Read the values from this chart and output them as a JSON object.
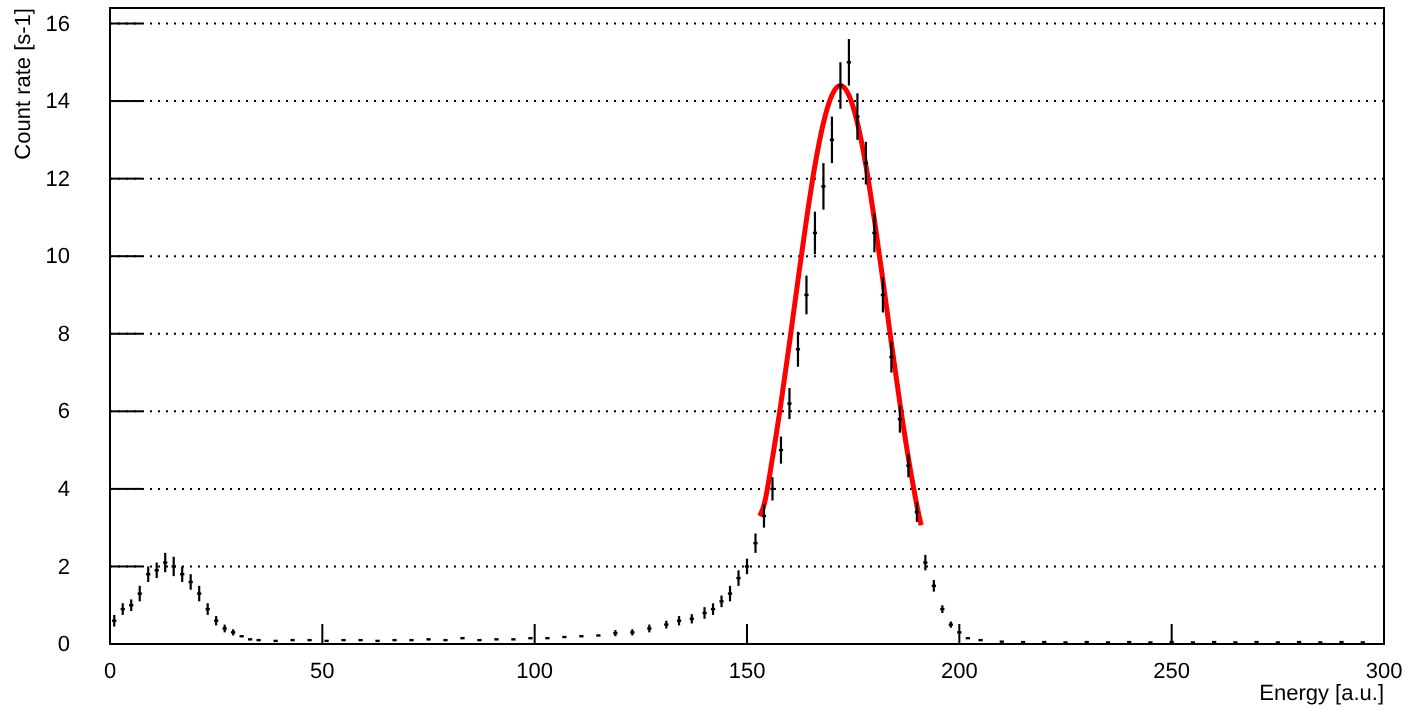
{
  "chart_data": {
    "type": "scatter",
    "xlabel": "Energy [a.u.]",
    "ylabel": "Count rate [s-1]",
    "xlim": [
      0,
      300
    ],
    "xticks": [
      0,
      50,
      100,
      150,
      200,
      250,
      300
    ],
    "ylim": [
      0,
      16.4
    ],
    "yticks": [
      0,
      2,
      4,
      6,
      8,
      10,
      12,
      14,
      16
    ],
    "grid": "y",
    "series": [
      {
        "type": "line",
        "color": "#ff0000",
        "x": [
          153,
          154,
          156,
          158,
          160,
          162,
          164,
          166,
          168,
          170,
          172,
          174,
          176,
          178,
          180,
          182,
          184,
          186,
          188,
          190,
          191
        ],
        "values": [
          3.3,
          3.58,
          4.8,
          6.21,
          7.76,
          9.38,
          10.94,
          12.34,
          13.44,
          14.15,
          14.4,
          14.15,
          13.44,
          12.34,
          10.94,
          9.38,
          7.76,
          6.21,
          4.8,
          3.58,
          3.06
        ]
      },
      {
        "color": "#000000",
        "x": [
          1,
          3,
          5,
          7,
          9,
          11,
          13,
          15,
          17,
          19,
          21,
          23,
          25,
          27,
          29,
          31,
          33,
          35,
          39,
          43,
          47,
          51,
          55,
          59,
          63,
          67,
          71,
          75,
          79,
          83,
          87,
          91,
          95,
          99,
          103,
          107,
          111,
          115,
          119,
          123,
          127,
          131,
          134,
          137,
          140,
          142,
          144,
          146,
          148,
          150,
          152,
          154,
          156,
          158,
          160,
          162,
          164,
          166,
          168,
          170,
          172,
          174,
          176,
          178,
          180,
          182,
          184,
          186,
          188,
          190,
          192,
          194,
          196,
          198,
          200,
          202,
          205,
          210,
          215,
          220,
          225,
          230,
          235,
          240,
          245,
          250,
          255,
          260,
          265,
          270,
          275,
          280,
          285,
          290,
          295
        ],
        "values": [
          0.6,
          0.9,
          1.0,
          1.3,
          1.8,
          1.9,
          2.1,
          2.0,
          1.8,
          1.6,
          1.3,
          0.9,
          0.6,
          0.4,
          0.3,
          0.2,
          0.12,
          0.1,
          0.08,
          0.1,
          0.1,
          0.08,
          0.1,
          0.1,
          0.08,
          0.1,
          0.1,
          0.12,
          0.1,
          0.15,
          0.1,
          0.12,
          0.12,
          0.15,
          0.15,
          0.18,
          0.2,
          0.22,
          0.28,
          0.3,
          0.4,
          0.5,
          0.6,
          0.65,
          0.8,
          0.9,
          1.1,
          1.3,
          1.7,
          2.0,
          2.6,
          3.3,
          4.0,
          5.0,
          6.2,
          7.6,
          9.0,
          10.6,
          11.8,
          13.0,
          14.4,
          15.0,
          13.6,
          12.4,
          10.6,
          9.0,
          7.4,
          5.8,
          4.6,
          3.4,
          2.1,
          1.5,
          0.9,
          0.5,
          0.3,
          0.15,
          0.1,
          0.06,
          0.05,
          0.05,
          0.04,
          0.05,
          0.04,
          0.05,
          0.04,
          0.05,
          0.04,
          0.05,
          0.04,
          0.05,
          0.04,
          0.05,
          0.04,
          0.05,
          0.04
        ],
        "errors": [
          0.15,
          0.15,
          0.15,
          0.2,
          0.2,
          0.2,
          0.25,
          0.25,
          0.2,
          0.2,
          0.2,
          0.15,
          0.12,
          0.1,
          0.08,
          null,
          null,
          null,
          null,
          null,
          null,
          null,
          null,
          null,
          null,
          null,
          null,
          null,
          null,
          null,
          null,
          null,
          null,
          null,
          null,
          null,
          null,
          null,
          0.08,
          0.08,
          0.1,
          0.1,
          0.12,
          0.12,
          0.15,
          0.15,
          0.15,
          0.2,
          0.2,
          0.2,
          0.25,
          0.3,
          0.3,
          0.35,
          0.4,
          0.45,
          0.5,
          0.55,
          0.6,
          0.6,
          0.6,
          0.6,
          0.6,
          0.55,
          0.5,
          0.45,
          0.4,
          0.35,
          0.3,
          0.25,
          0.2,
          0.15,
          0.1,
          0.08,
          null,
          null,
          null,
          null,
          null,
          null,
          null,
          null,
          null,
          null,
          null,
          null,
          null,
          null,
          null,
          null,
          null,
          null,
          null,
          null,
          null
        ]
      }
    ]
  }
}
